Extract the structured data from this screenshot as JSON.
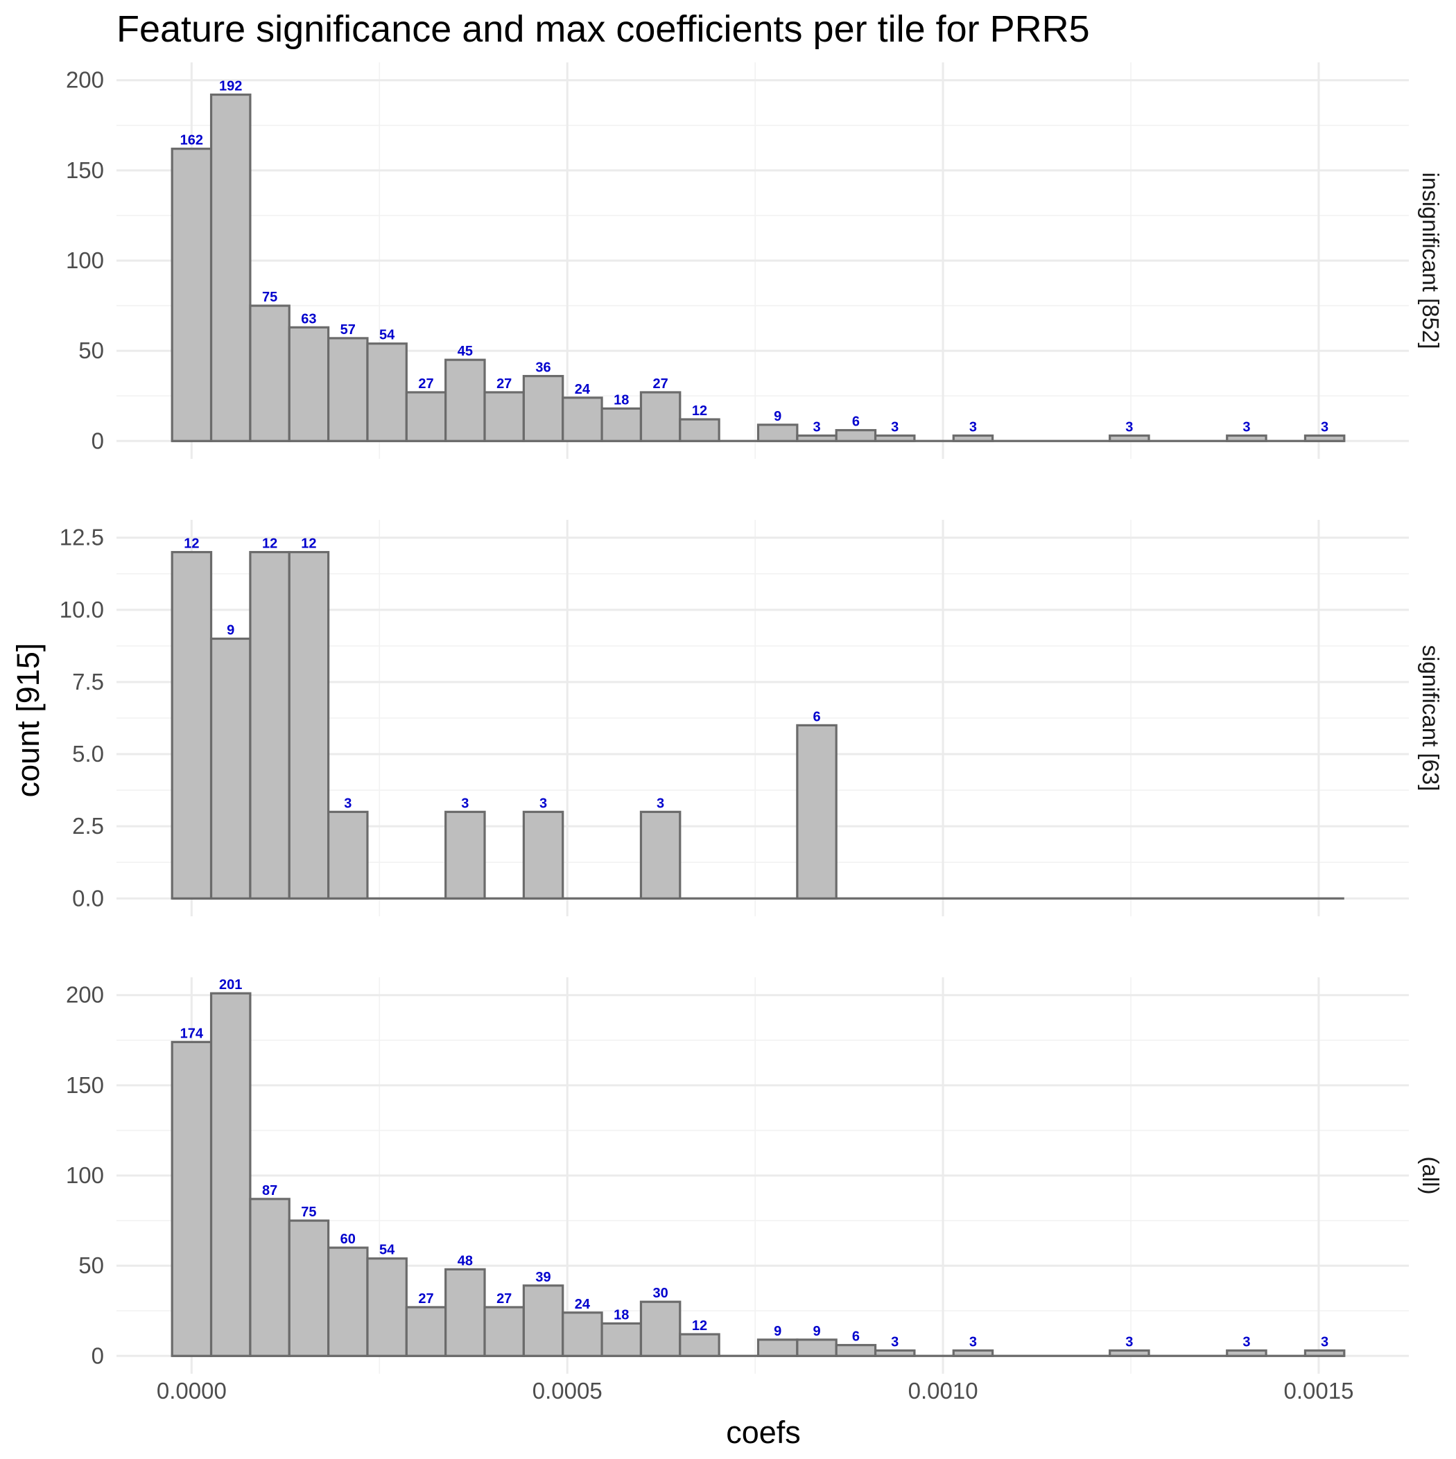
{
  "chart_data": {
    "type": "bar",
    "title": "Feature significance and max coefficients per tile for PRR5",
    "xlabel": "coefs",
    "ylabel": "count [915]",
    "x_ticks": [
      "0.0000",
      "0.0005",
      "0.0010",
      "0.0015"
    ],
    "x_tick_values": [
      0,
      0.0005,
      0.001,
      0.0015
    ],
    "xlim": [
      -0.0001,
      0.00162
    ],
    "bin_width": 5.2e-05,
    "bin_start": -2.6e-05,
    "bin_count": 30,
    "panels": [
      {
        "strip": "insignificant [852]",
        "ylim": [
          0,
          200
        ],
        "y_ticks": [
          "0",
          "50",
          "100",
          "150",
          "200"
        ],
        "y_tick_values": [
          0,
          50,
          100,
          150,
          200
        ],
        "counts": [
          162,
          192,
          75,
          63,
          57,
          54,
          27,
          45,
          27,
          36,
          24,
          18,
          27,
          12,
          0,
          9,
          3,
          6,
          3,
          0,
          3,
          0,
          0,
          0,
          3,
          0,
          0,
          3,
          0,
          3
        ]
      },
      {
        "strip": "significant [63]",
        "ylim": [
          0,
          12.5
        ],
        "y_ticks": [
          "0.0",
          "2.5",
          "5.0",
          "7.5",
          "10.0",
          "12.5"
        ],
        "y_tick_values": [
          0,
          2.5,
          5,
          7.5,
          10,
          12.5
        ],
        "counts": [
          12,
          9,
          12,
          12,
          3,
          0,
          0,
          3,
          0,
          3,
          0,
          0,
          3,
          0,
          0,
          0,
          6,
          0,
          0,
          0,
          0,
          0,
          0,
          0,
          0,
          0,
          0,
          0,
          0,
          0
        ]
      },
      {
        "strip": "(all)",
        "ylim": [
          0,
          200
        ],
        "y_ticks": [
          "0",
          "50",
          "100",
          "150",
          "200"
        ],
        "y_tick_values": [
          0,
          50,
          100,
          150,
          200
        ],
        "counts": [
          174,
          201,
          87,
          75,
          60,
          54,
          27,
          48,
          27,
          39,
          24,
          18,
          30,
          12,
          0,
          9,
          9,
          6,
          3,
          0,
          3,
          0,
          0,
          0,
          3,
          0,
          0,
          3,
          0,
          3
        ]
      }
    ],
    "grid": true,
    "legend": "none",
    "colors": {
      "bar_fill": "#bebebe",
      "bar_outline": "#6b6b6b",
      "count_label": "#0000cd"
    }
  }
}
